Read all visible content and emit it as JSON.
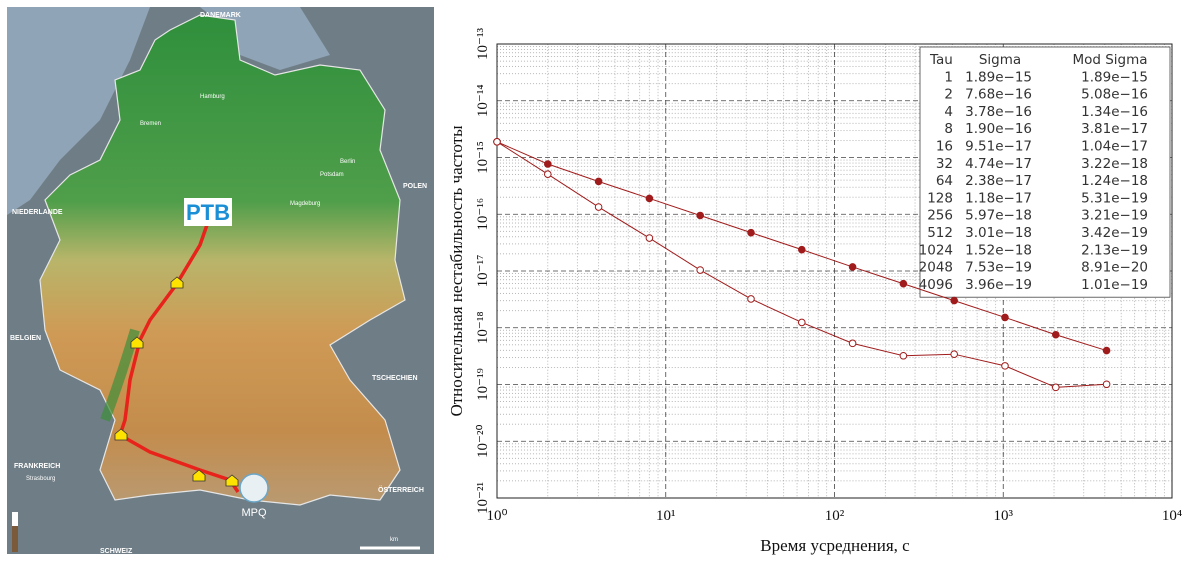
{
  "map": {
    "labels": [
      "DANEMARK",
      "NIEDERLANDE",
      "POLEN",
      "BELGIEN",
      "FRANKREICH",
      "Strasbourg",
      "SCHWEIZ",
      "ÖSTERREICH",
      "TSCHECHIEN",
      "Hamburg",
      "Bremen",
      "Berlin",
      "Magdeburg",
      "Potsdam",
      "km"
    ],
    "sites": [
      "PTB",
      "MPQ"
    ]
  },
  "chart_data": {
    "type": "line",
    "x_label": "Время усреднения, с",
    "y_label": "Относительная нестабильность частоты",
    "x": [
      1,
      2,
      4,
      8,
      16,
      32,
      64,
      128,
      256,
      512,
      1024,
      2048,
      4096
    ],
    "series": [
      {
        "color": "#a01c1c",
        "marker": "filled",
        "values": [
          1.89e-15,
          7.68e-16,
          3.78e-16,
          1.9e-16,
          9.51e-17,
          4.74e-17,
          2.38e-17,
          1.18e-17,
          5.97e-18,
          3.01e-18,
          1.52e-18,
          7.53e-19,
          3.96e-19
        ]
      },
      {
        "color": "#a01c1c",
        "marker": "open",
        "values": [
          1.89e-15,
          5.08e-16,
          1.34e-16,
          3.81e-17,
          1.04e-17,
          3.22e-18,
          1.24e-18,
          5.31e-19,
          3.21e-19,
          3.42e-19,
          2.13e-19,
          8.91e-20,
          1.01e-19
        ]
      }
    ],
    "log_x": true,
    "log_y": true,
    "grid": true,
    "xlim": [
      1,
      10000
    ],
    "ylim": [
      1e-21,
      1e-13
    ],
    "xticks": [
      {
        "value": 1,
        "label": "10⁰"
      },
      {
        "value": 10,
        "label": "10¹"
      },
      {
        "value": 100,
        "label": "10²"
      },
      {
        "value": 1000,
        "label": "10³"
      },
      {
        "value": 10000,
        "label": "10⁴"
      }
    ],
    "yticks": [
      {
        "value": 1e-21,
        "label": "10⁻²¹"
      },
      {
        "value": 1e-20,
        "label": "10⁻²⁰"
      },
      {
        "value": 1e-19,
        "label": "10⁻¹⁹"
      },
      {
        "value": 1e-18,
        "label": "10⁻¹⁸"
      },
      {
        "value": 1e-17,
        "label": "10⁻¹⁷"
      },
      {
        "value": 1e-16,
        "label": "10⁻¹⁶"
      },
      {
        "value": 1e-15,
        "label": "10⁻¹⁵"
      },
      {
        "value": 1e-14,
        "label": "10⁻¹⁴"
      },
      {
        "value": 1e-13,
        "label": "10⁻¹³"
      }
    ],
    "table": {
      "columns": [
        "Tau",
        "Sigma",
        "Mod Sigma"
      ],
      "rows": [
        [
          1,
          "1.89e−15",
          "1.89e−15"
        ],
        [
          2,
          "7.68e−16",
          "5.08e−16"
        ],
        [
          4,
          "3.78e−16",
          "1.34e−16"
        ],
        [
          8,
          "1.90e−16",
          "3.81e−17"
        ],
        [
          16,
          "9.51e−17",
          "1.04e−17"
        ],
        [
          32,
          "4.74e−17",
          "3.22e−18"
        ],
        [
          64,
          "2.38e−17",
          "1.24e−18"
        ],
        [
          128,
          "1.18e−17",
          "5.31e−19"
        ],
        [
          256,
          "5.97e−18",
          "3.21e−19"
        ],
        [
          512,
          "3.01e−18",
          "3.42e−19"
        ],
        [
          1024,
          "1.52e−18",
          "2.13e−19"
        ],
        [
          2048,
          "7.53e−19",
          "8.91e−20"
        ],
        [
          4096,
          "3.96e−19",
          "1.01e−19"
        ]
      ]
    }
  }
}
